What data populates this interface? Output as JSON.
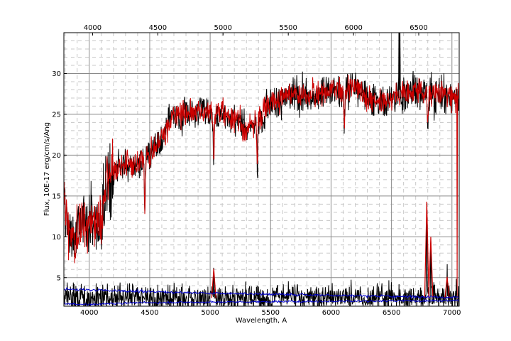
{
  "chart_data": {
    "type": "line",
    "xlabel": "Wavelength, A",
    "ylabel": "Flux, 10E-17 erg/cm/s/Ang",
    "xlim": [
      3790,
      7060
    ],
    "ylim": [
      1.5,
      35
    ],
    "top_xlim": [
      3780,
      6810
    ],
    "bottom_xticks": [
      4000,
      4500,
      5000,
      5500,
      6000,
      6500,
      7000
    ],
    "top_xticks": [
      4000,
      4500,
      5000,
      5500,
      6000,
      6500
    ],
    "yticks": [
      5,
      10,
      15,
      20,
      25,
      30
    ],
    "grid": true,
    "series": [
      {
        "role": "observed-spectrum",
        "color": "#000000",
        "profile": {
          "x": [
            3790,
            3850,
            3900,
            3950,
            4000,
            4050,
            4100,
            4150,
            4200,
            4300,
            4400,
            4500,
            4600,
            4700,
            4800,
            4900,
            5000,
            5100,
            5200,
            5300,
            5400,
            5500,
            5600,
            5700,
            5800,
            5900,
            6000,
            6100,
            6200,
            6300,
            6400,
            6500,
            6600,
            6700,
            6800,
            6900,
            7000,
            7050
          ],
          "y": [
            15,
            9,
            10.5,
            11.5,
            11.5,
            11.5,
            12,
            17,
            18,
            19,
            18.5,
            20,
            22,
            25,
            25,
            25.5,
            25,
            25,
            24.5,
            23,
            24.5,
            26.5,
            27,
            27.5,
            27,
            27.5,
            28,
            28,
            28.5,
            27,
            26.5,
            27,
            27.5,
            28,
            27.5,
            27.5,
            27,
            27
          ]
        }
      },
      {
        "role": "model-fit",
        "color": "#cc0000",
        "profile": {
          "x": [
            3790,
            3850,
            3900,
            3950,
            4000,
            4050,
            4100,
            4150,
            4200,
            4300,
            4400,
            4500,
            4600,
            4700,
            4800,
            4900,
            5000,
            5100,
            5200,
            5300,
            5400,
            5500,
            5600,
            5700,
            5800,
            5900,
            6000,
            6100,
            6200,
            6300,
            6400,
            6500,
            6600,
            6700,
            6800,
            6900,
            7000,
            7050
          ],
          "y": [
            15,
            9.5,
            10.5,
            11.5,
            11.5,
            11.5,
            12,
            17,
            18,
            19,
            18.5,
            20,
            22,
            25,
            25,
            25.5,
            25,
            25,
            24.5,
            23,
            24.5,
            26.5,
            27,
            27.5,
            27,
            27.5,
            28,
            28,
            28.5,
            27,
            26.5,
            27,
            27.5,
            28,
            27.5,
            27.5,
            27,
            27
          ]
        }
      },
      {
        "role": "residual",
        "color": "#000000",
        "mean": 2.6,
        "noise": 0.8
      },
      {
        "role": "error-upper",
        "color": "#0000cc",
        "x": [
          3790,
          4200,
          5000,
          5800,
          6500,
          7050
        ],
        "y": [
          3.6,
          3.4,
          3.1,
          2.9,
          2.7,
          2.6
        ]
      },
      {
        "role": "error-lower",
        "color": "#0000cc",
        "x": [
          3790,
          4000,
          4300,
          5000,
          6000,
          7050
        ],
        "y": [
          1.8,
          1.7,
          1.9,
          2.0,
          2.1,
          2.2
        ]
      }
    ],
    "emission_spikes": [
      {
        "x": 5030,
        "y": 6.1
      },
      {
        "x": 6792,
        "y": 14.3
      },
      {
        "x": 6825,
        "y": 10.0
      },
      {
        "x": 6960,
        "y": 5.1
      }
    ],
    "absorption_features": [
      {
        "x": 4460,
        "depth": 6
      },
      {
        "x": 5030,
        "depth": 5
      },
      {
        "x": 5390,
        "depth": 6
      },
      {
        "x": 6110,
        "depth": 5
      },
      {
        "x": 6800,
        "depth": 4
      }
    ]
  }
}
